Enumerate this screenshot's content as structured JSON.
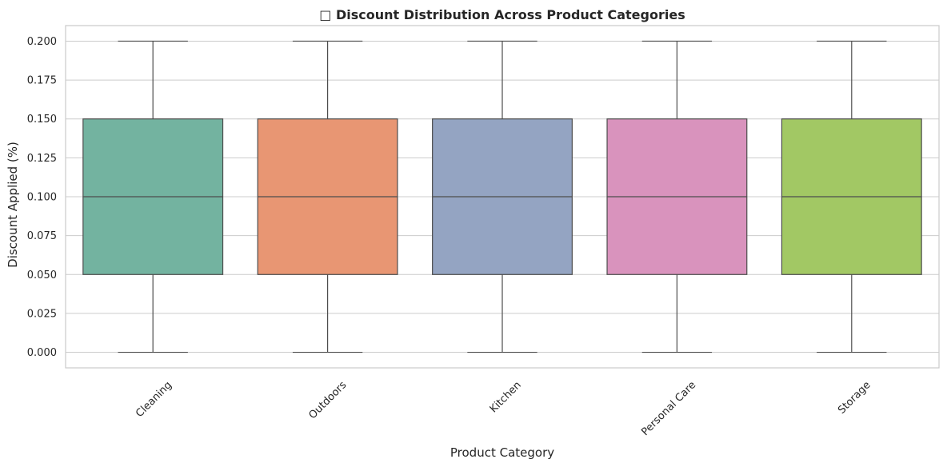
{
  "chart_data": {
    "type": "box",
    "title": "□ Discount Distribution Across Product Categories",
    "xlabel": "Product Category",
    "ylabel": "Discount Applied (%)",
    "ylim": [
      -0.01,
      0.21
    ],
    "yticks": [
      "0.000",
      "0.025",
      "0.050",
      "0.075",
      "0.100",
      "0.125",
      "0.150",
      "0.175",
      "0.200"
    ],
    "ytick_values": [
      0.0,
      0.025,
      0.05,
      0.075,
      0.1,
      0.125,
      0.15,
      0.175,
      0.2
    ],
    "grid": true,
    "legend": "none",
    "categories": [
      "Cleaning",
      "Outdoors",
      "Kitchen",
      "Personal Care",
      "Storage"
    ],
    "boxes": [
      {
        "category": "Cleaning",
        "min": 0.0,
        "q1": 0.05,
        "median": 0.1,
        "q3": 0.15,
        "max": 0.2,
        "color": "#73b3a0"
      },
      {
        "category": "Outdoors",
        "min": 0.0,
        "q1": 0.05,
        "median": 0.1,
        "q3": 0.15,
        "max": 0.2,
        "color": "#e89673"
      },
      {
        "category": "Kitchen",
        "min": 0.0,
        "q1": 0.05,
        "median": 0.1,
        "q3": 0.15,
        "max": 0.2,
        "color": "#94a4c2"
      },
      {
        "category": "Personal Care",
        "min": 0.0,
        "q1": 0.05,
        "median": 0.1,
        "q3": 0.15,
        "max": 0.2,
        "color": "#d993bd"
      },
      {
        "category": "Storage",
        "min": 0.0,
        "q1": 0.05,
        "median": 0.1,
        "q3": 0.15,
        "max": 0.2,
        "color": "#a2c864"
      }
    ]
  }
}
